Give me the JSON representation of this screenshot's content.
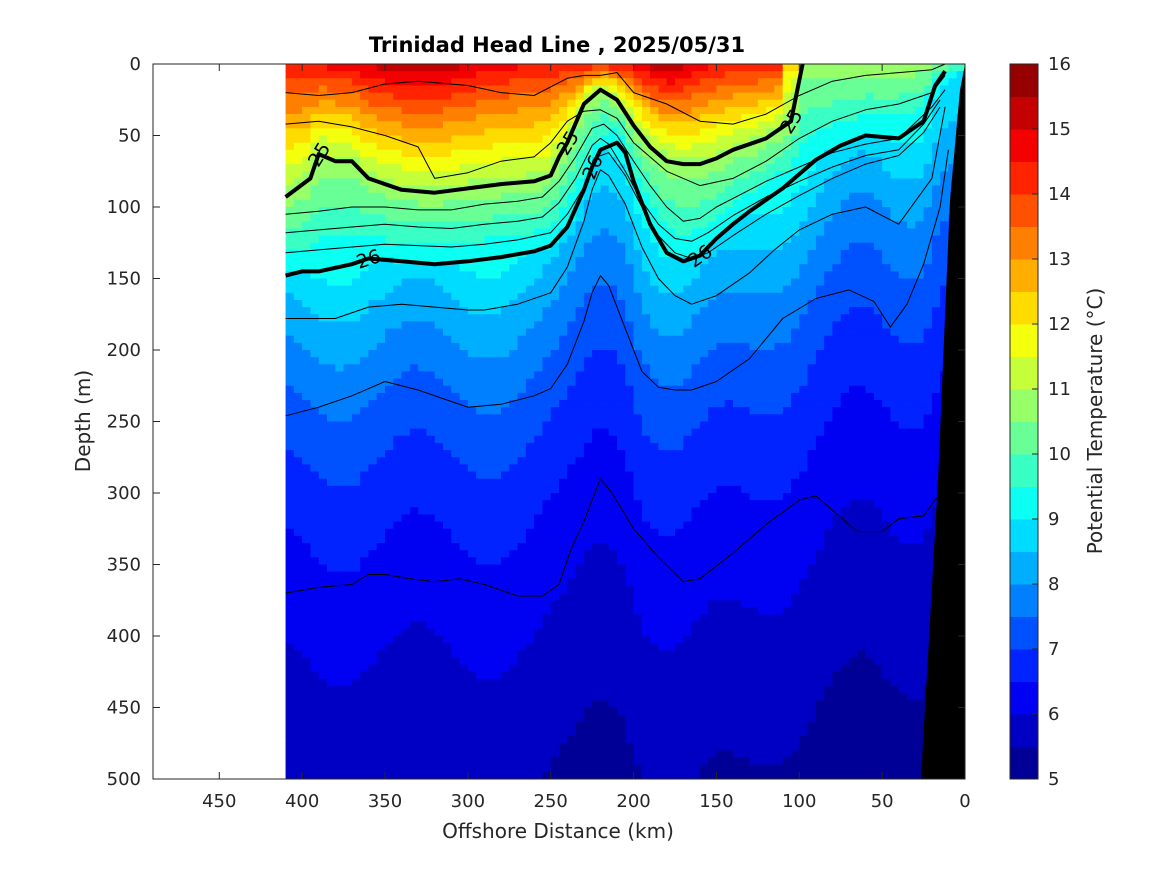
{
  "chart_data": {
    "type": "heatmap",
    "subtype": "filled-contour-section",
    "title": "Trinidad Head Line , 2025/05/31",
    "xlabel": "Offshore Distance (km)",
    "ylabel": "Depth (m)",
    "xlim": [
      490,
      0
    ],
    "ylim": [
      0,
      500
    ],
    "x_reversed": true,
    "y_reversed": true,
    "x_ticks": [
      450,
      400,
      350,
      300,
      250,
      200,
      150,
      100,
      50,
      0
    ],
    "y_ticks": [
      0,
      50,
      100,
      150,
      200,
      250,
      300,
      350,
      400,
      450,
      500
    ],
    "data_extent_x": [
      410,
      0
    ],
    "colorbar": {
      "label": "Potential Temperature (°C)",
      "min": 5,
      "max": 16,
      "step": 0.5,
      "ticks": [
        5,
        6,
        7,
        8,
        9,
        10,
        11,
        12,
        13,
        14,
        15,
        16
      ],
      "colormap": "jet"
    },
    "density_contours": [
      {
        "label": "25",
        "bold": true,
        "x": [
          410,
          395,
          390,
          380,
          370,
          360,
          340,
          320,
          300,
          280,
          260,
          250,
          245,
          240,
          230,
          220,
          210,
          200,
          190,
          180,
          170,
          160,
          150,
          140,
          120,
          105,
          98
        ],
        "depth": [
          93,
          80,
          63,
          68,
          68,
          80,
          88,
          90,
          87,
          84,
          82,
          78,
          65,
          55,
          28,
          18,
          25,
          43,
          58,
          68,
          70,
          70,
          66,
          60,
          52,
          40,
          0
        ]
      },
      {
        "label": "26",
        "bold": true,
        "x": [
          410,
          400,
          390,
          370,
          360,
          340,
          320,
          300,
          280,
          260,
          250,
          240,
          230,
          225,
          220,
          210,
          205,
          200,
          190,
          180,
          170,
          160,
          150,
          140,
          130,
          110,
          90,
          75,
          60,
          40,
          25,
          18,
          12
        ],
        "depth": [
          148,
          145,
          145,
          140,
          136,
          138,
          140,
          138,
          135,
          131,
          127,
          114,
          88,
          72,
          60,
          55,
          62,
          82,
          112,
          132,
          138,
          134,
          122,
          112,
          103,
          87,
          67,
          57,
          50,
          52,
          40,
          15,
          5
        ]
      },
      {
        "label": "",
        "bold": false,
        "x": [
          410,
          390,
          370,
          350,
          330,
          300,
          280,
          260,
          240,
          230,
          220,
          210,
          200,
          180,
          160,
          140,
          120,
          100,
          80,
          60,
          40,
          20,
          12
        ],
        "depth": [
          20,
          22,
          20,
          14,
          12,
          15,
          20,
          22,
          10,
          8,
          8,
          6,
          20,
          28,
          40,
          42,
          35,
          22,
          12,
          8,
          6,
          4,
          0
        ]
      },
      {
        "label": "",
        "bold": false,
        "x": [
          410,
          390,
          370,
          350,
          330,
          320,
          300,
          280,
          260,
          250,
          240,
          230,
          220,
          210,
          200,
          180,
          160,
          140,
          120,
          100,
          80,
          60,
          40,
          20,
          12
        ],
        "depth": [
          42,
          40,
          44,
          50,
          58,
          80,
          76,
          68,
          65,
          55,
          40,
          33,
          32,
          38,
          55,
          75,
          85,
          80,
          68,
          52,
          40,
          32,
          28,
          20,
          8
        ]
      },
      {
        "label": "",
        "bold": false,
        "x": [
          410,
          390,
          370,
          350,
          330,
          310,
          290,
          270,
          255,
          245,
          235,
          225,
          218,
          210,
          200,
          190,
          180,
          170,
          160,
          150,
          140,
          120,
          100,
          80,
          60,
          40,
          20,
          12
        ],
        "depth": [
          105,
          103,
          100,
          100,
          102,
          102,
          98,
          96,
          93,
          82,
          65,
          45,
          42,
          50,
          68,
          85,
          100,
          110,
          108,
          100,
          94,
          82,
          72,
          62,
          56,
          52,
          30,
          18
        ]
      },
      {
        "label": "",
        "bold": false,
        "x": [
          410,
          390,
          370,
          350,
          330,
          310,
          290,
          270,
          255,
          245,
          235,
          225,
          220,
          215,
          205,
          195,
          185,
          175,
          165,
          155,
          140,
          120,
          100,
          80,
          60,
          40,
          25,
          15
        ],
        "depth": [
          118,
          116,
          114,
          112,
          114,
          115,
          112,
          110,
          107,
          97,
          80,
          57,
          52,
          56,
          75,
          96,
          112,
          122,
          124,
          118,
          106,
          93,
          82,
          72,
          64,
          60,
          42,
          25
        ]
      },
      {
        "label": "",
        "bold": false,
        "x": [
          410,
          390,
          370,
          350,
          330,
          310,
          290,
          270,
          250,
          240,
          230,
          222,
          215,
          205,
          195,
          185,
          175,
          165,
          155,
          140,
          120,
          100,
          80,
          60,
          40,
          25,
          15
        ],
        "depth": [
          132,
          130,
          128,
          126,
          127,
          128,
          126,
          123,
          118,
          105,
          86,
          65,
          62,
          78,
          100,
          120,
          132,
          136,
          132,
          120,
          105,
          92,
          80,
          70,
          64,
          48,
          30
        ]
      },
      {
        "label": "",
        "bold": false,
        "x": [
          410,
          390,
          380,
          360,
          340,
          320,
          300,
          290,
          270,
          250,
          240,
          230,
          225,
          220,
          215,
          205,
          195,
          185,
          175,
          165,
          150,
          130,
          115,
          100,
          80,
          60,
          40,
          20,
          12
        ],
        "depth": [
          178,
          178,
          178,
          170,
          168,
          170,
          172,
          172,
          168,
          160,
          142,
          110,
          88,
          74,
          78,
          98,
          128,
          150,
          162,
          168,
          162,
          146,
          130,
          116,
          105,
          100,
          112,
          80,
          30
        ]
      },
      {
        "label": "",
        "bold": false,
        "x": [
          410,
          390,
          370,
          350,
          330,
          310,
          300,
          280,
          260,
          250,
          240,
          230,
          225,
          220,
          215,
          205,
          195,
          185,
          175,
          165,
          150,
          130,
          110,
          90,
          70,
          55,
          45,
          35,
          25,
          15,
          10
        ],
        "depth": [
          246,
          240,
          232,
          222,
          228,
          236,
          240,
          238,
          232,
          227,
          210,
          180,
          160,
          148,
          155,
          185,
          215,
          226,
          228,
          228,
          222,
          206,
          178,
          164,
          158,
          166,
          184,
          168,
          140,
          100,
          60
        ]
      },
      {
        "label": "",
        "bold": false,
        "x": [
          410,
          390,
          370,
          360,
          350,
          335,
          320,
          305,
          290,
          270,
          255,
          245,
          238,
          230,
          225,
          220,
          213,
          200,
          185,
          170,
          160,
          140,
          120,
          100,
          90,
          80,
          65,
          50,
          40,
          25,
          15
        ],
        "depth": [
          370,
          366,
          364,
          357,
          357,
          360,
          362,
          360,
          364,
          372,
          372,
          364,
          340,
          320,
          305,
          290,
          300,
          325,
          345,
          362,
          360,
          342,
          322,
          305,
          302,
          312,
          327,
          327,
          318,
          316,
          300
        ]
      }
    ]
  }
}
